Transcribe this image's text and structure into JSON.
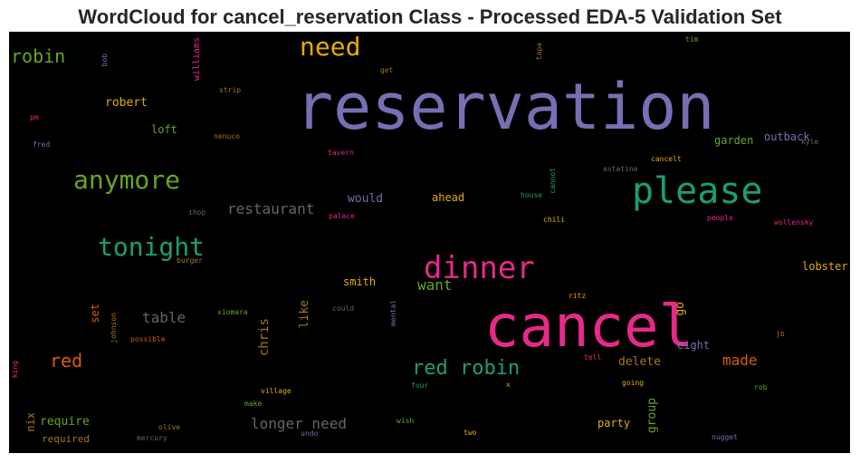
{
  "title": "WordCloud for cancel_reservation Class - Processed EDA-5 Validation Set",
  "colors": {
    "purple": "#7570b3",
    "teal": "#1b9e77",
    "magenta": "#e7298a",
    "green": "#66a61e",
    "orange": "#d95f02",
    "gold": "#e6ab02",
    "brown": "#a6761d",
    "gray": "#666666"
  },
  "words": [
    {
      "text": "reservation",
      "color": "purple"
    },
    {
      "text": "cancel",
      "color": "magenta"
    },
    {
      "text": "please",
      "color": "teal"
    },
    {
      "text": "dinner",
      "color": "magenta"
    },
    {
      "text": "tonight",
      "color": "teal"
    },
    {
      "text": "anymore",
      "color": "green"
    },
    {
      "text": "need",
      "color": "gold"
    },
    {
      "text": "robin",
      "color": "green"
    },
    {
      "text": "red robin",
      "color": "teal"
    },
    {
      "text": "red",
      "color": "orange"
    },
    {
      "text": "longer need",
      "color": "gray"
    },
    {
      "text": "restaurant",
      "color": "gray"
    },
    {
      "text": "want",
      "color": "green"
    },
    {
      "text": "table",
      "color": "gray"
    },
    {
      "text": "made",
      "color": "orange"
    },
    {
      "text": "delete",
      "color": "brown"
    },
    {
      "text": "require",
      "color": "green"
    },
    {
      "text": "robert",
      "color": "gold"
    },
    {
      "text": "would",
      "color": "purple"
    },
    {
      "text": "ahead",
      "color": "gold"
    },
    {
      "text": "smith",
      "color": "gold"
    },
    {
      "text": "party",
      "color": "gold"
    },
    {
      "text": "garden",
      "color": "green"
    },
    {
      "text": "outback",
      "color": "purple"
    },
    {
      "text": "lobster",
      "color": "gold"
    },
    {
      "text": "eight",
      "color": "purple"
    },
    {
      "text": "loft",
      "color": "green"
    },
    {
      "text": "chris",
      "color": "brown"
    },
    {
      "text": "like",
      "color": "brown"
    },
    {
      "text": "go",
      "color": "gold"
    },
    {
      "text": "group",
      "color": "green"
    },
    {
      "text": "set",
      "color": "orange"
    },
    {
      "text": "nix",
      "color": "brown"
    },
    {
      "text": "required",
      "color": "brown"
    },
    {
      "text": "williams",
      "color": "magenta"
    },
    {
      "text": "bob",
      "color": "purple"
    },
    {
      "text": "strip",
      "color": "brown"
    },
    {
      "text": "get",
      "color": "brown"
    },
    {
      "text": "tapa",
      "color": "brown"
    },
    {
      "text": "tim",
      "color": "green"
    },
    {
      "text": "pm",
      "color": "magenta"
    },
    {
      "text": "fred",
      "color": "purple"
    },
    {
      "text": "nenuco",
      "color": "brown"
    },
    {
      "text": "tavern",
      "color": "magenta"
    },
    {
      "text": "kyle",
      "color": "gray"
    },
    {
      "text": "cancelt",
      "color": "gold"
    },
    {
      "text": "astatine",
      "color": "gray"
    },
    {
      "text": "cannot",
      "color": "teal"
    },
    {
      "text": "house",
      "color": "teal"
    },
    {
      "text": "ihop",
      "color": "gray"
    },
    {
      "text": "palace",
      "color": "magenta"
    },
    {
      "text": "chili",
      "color": "gold"
    },
    {
      "text": "people",
      "color": "magenta"
    },
    {
      "text": "wollensky",
      "color": "magenta"
    },
    {
      "text": "burger",
      "color": "brown"
    },
    {
      "text": "ritz",
      "color": "gold"
    },
    {
      "text": "xiomara",
      "color": "green"
    },
    {
      "text": "could",
      "color": "gray"
    },
    {
      "text": "mental",
      "color": "purple"
    },
    {
      "text": "johnson",
      "color": "brown"
    },
    {
      "text": "possible",
      "color": "orange"
    },
    {
      "text": "jb",
      "color": "brown"
    },
    {
      "text": "king",
      "color": "magenta"
    },
    {
      "text": "tell",
      "color": "magenta"
    },
    {
      "text": "going",
      "color": "gold"
    },
    {
      "text": "village",
      "color": "gold"
    },
    {
      "text": "four",
      "color": "teal"
    },
    {
      "text": "x",
      "color": "gold"
    },
    {
      "text": "rob",
      "color": "green"
    },
    {
      "text": "make",
      "color": "green"
    },
    {
      "text": "wish",
      "color": "green"
    },
    {
      "text": "olive",
      "color": "brown"
    },
    {
      "text": "mercury",
      "color": "gray"
    },
    {
      "text": "undo",
      "color": "purple"
    },
    {
      "text": "two",
      "color": "gold"
    },
    {
      "text": "nugget",
      "color": "purple"
    }
  ]
}
